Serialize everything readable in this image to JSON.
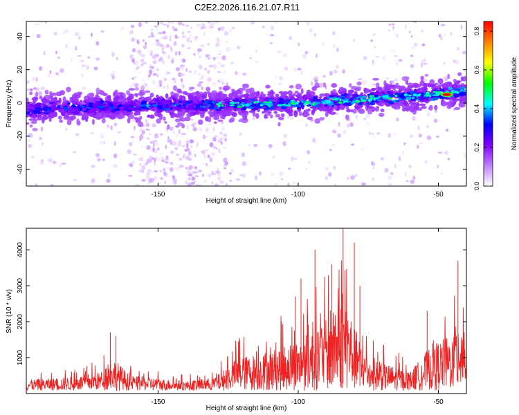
{
  "title": "C2E2.2026.116.21.07.R11",
  "chart_data": [
    {
      "type": "heatmap",
      "name": "spectrogram",
      "xlabel": "Height of straight line (km)",
      "ylabel": "Frequency (Hz)",
      "xlim": [
        -197,
        -40
      ],
      "ylim": [
        -50,
        49
      ],
      "xticks": [
        -150,
        -100,
        -50
      ],
      "yticks": [
        -40,
        -20,
        0,
        20,
        40
      ],
      "ridge": [
        [
          -197,
          -4
        ],
        [
          -180,
          -3
        ],
        [
          -160,
          -2
        ],
        [
          -140,
          -1.5
        ],
        [
          -120,
          -1
        ],
        [
          -100,
          0
        ],
        [
          -80,
          2
        ],
        [
          -60,
          4
        ],
        [
          -45,
          6
        ],
        [
          -40,
          7
        ]
      ],
      "peak": {
        "x": -47,
        "y": 5,
        "value": 0.85
      },
      "colorbar": {
        "label": "Normalized spectral amplitude",
        "range": [
          0.0,
          0.85
        ],
        "ticks": [
          0.0,
          0.2,
          0.4,
          0.6,
          0.8
        ],
        "colormap": [
          "#ffffff",
          "#c080ff",
          "#8000ff",
          "#0000ff",
          "#00ffff",
          "#00ff00",
          "#ffff00",
          "#ff8000",
          "#ff0000"
        ]
      }
    },
    {
      "type": "line",
      "name": "snr",
      "xlabel": "Height of straight line (km)",
      "ylabel": "SNR (10 * v/v)",
      "xlim": [
        -197,
        -40
      ],
      "ylim": [
        0,
        4600
      ],
      "xticks": [
        -150,
        -100,
        -50
      ],
      "yticks": [
        1000,
        2000,
        3000,
        4000
      ],
      "color": "#ee2222",
      "envelope": [
        [
          -197,
          500
        ],
        [
          -180,
          650
        ],
        [
          -170,
          900
        ],
        [
          -167,
          1700
        ],
        [
          -160,
          700
        ],
        [
          -140,
          450
        ],
        [
          -130,
          600
        ],
        [
          -122,
          1500
        ],
        [
          -110,
          1900
        ],
        [
          -100,
          2400
        ],
        [
          -95,
          2800
        ],
        [
          -90,
          3300
        ],
        [
          -83,
          4400
        ],
        [
          -80,
          3000
        ],
        [
          -75,
          1500
        ],
        [
          -60,
          900
        ],
        [
          -52,
          2200
        ],
        [
          -45,
          2600
        ],
        [
          -42,
          3700
        ],
        [
          -40,
          3000
        ]
      ],
      "spikes": [
        [
          -167,
          1700
        ],
        [
          -165,
          1600
        ],
        [
          -121,
          1550
        ],
        [
          -106,
          2000
        ],
        [
          -101,
          2700
        ],
        [
          -99,
          3200
        ],
        [
          -94,
          4000
        ],
        [
          -88,
          3600
        ],
        [
          -84,
          4600
        ],
        [
          -80,
          4200
        ],
        [
          -78,
          3000
        ],
        [
          -54,
          2300
        ],
        [
          -43,
          3700
        ]
      ]
    }
  ]
}
